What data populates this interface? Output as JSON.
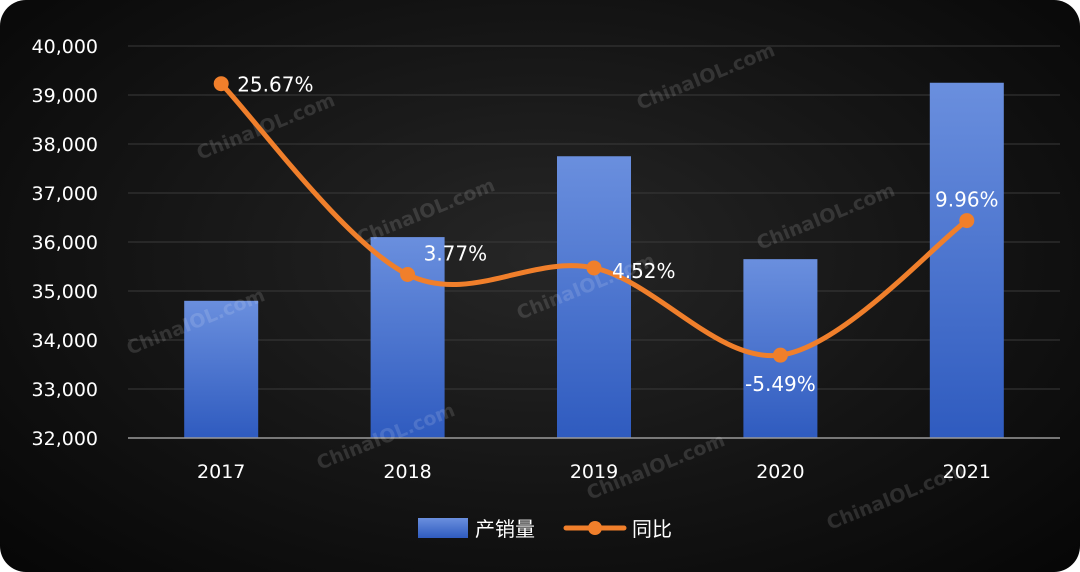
{
  "chart_data": {
    "type": "bar",
    "categories": [
      "2017",
      "2018",
      "2019",
      "2020",
      "2021"
    ],
    "series": [
      {
        "name": "产销量",
        "kind": "bar",
        "axis": "left",
        "values": [
          34800,
          36100,
          37750,
          35650,
          39250
        ],
        "color": "#3f68c6"
      },
      {
        "name": "同比",
        "kind": "line",
        "axis": "right",
        "values": [
          25.67,
          3.77,
          4.52,
          -5.49,
          9.96
        ],
        "labels": [
          "25.67%",
          "3.77%",
          "4.52%",
          "-5.49%",
          "9.96%"
        ],
        "color": "#f07f2b"
      }
    ],
    "ylim": [
      32000,
      40000
    ],
    "y_ticks": [
      "32,000",
      "33,000",
      "34,000",
      "35,000",
      "36,000",
      "37,000",
      "38,000",
      "39,000",
      "40,000"
    ],
    "secondary_axis": "hidden",
    "grid": true,
    "legend_position": "bottom",
    "title": "",
    "xlabel": "",
    "ylabel": ""
  },
  "watermark": "ChinaIOL.com"
}
